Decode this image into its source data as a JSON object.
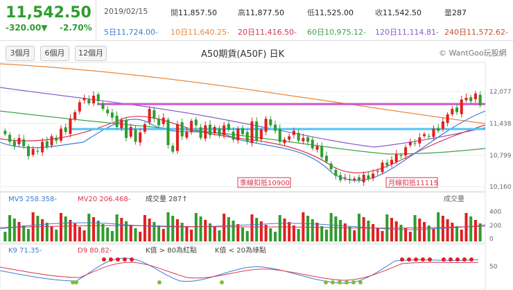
{
  "quote": {
    "price": "11,542.50",
    "change": "-320.00▼",
    "change_pct": "-2.70%",
    "date": "2019/02/15",
    "open_label": "開",
    "open": "11,857.50",
    "high_label": "高",
    "high": "11,877.50",
    "low_label": "低",
    "low": "11,525.00",
    "close_label": "收",
    "close": "11,542.50",
    "volume_label": "量",
    "volume": "287"
  },
  "moving_averages": [
    {
      "label": "5日",
      "value": "11,724.00-",
      "color": "#3a7bd5"
    },
    {
      "label": "10日",
      "value": "11,640.25-",
      "color": "#e8883a"
    },
    {
      "label": "20日",
      "value": "11,416.50-",
      "color": "#d9344c"
    },
    {
      "label": "60日",
      "value": "10,975.12-",
      "color": "#3aa34a"
    },
    {
      "label": "120日",
      "value": "11,114.81-",
      "color": "#8a5cc9"
    },
    {
      "label": "240日",
      "value": "11,572.62-",
      "color": "#c8502a"
    }
  ],
  "toolbar": {
    "btn_3m": "3個月",
    "btn_6m": "6個月",
    "btn_12m": "12個月",
    "title": "A50期貨(A50F) 日K",
    "brand": "© WantGoo玩股網"
  },
  "colors": {
    "up": "#e02020",
    "down": "#2e9d2e",
    "resistance": "#cc55cc",
    "support": "#4fc3f7",
    "ma5": "#3a7bd5",
    "ma20": "#d9344c",
    "ma60": "#3aa34a",
    "ma120": "#8a5cc9",
    "ma240": "#e8883a"
  },
  "chart_data": {
    "type": "candlestick",
    "y_ticks": [
      "12,077",
      "11,438",
      "10,799",
      "10,160"
    ],
    "ylim": [
      10000,
      12300
    ],
    "resistance_level": 11750,
    "support_level": 11340,
    "annotations": [
      {
        "text": "季線扣抵10900"
      },
      {
        "text": "月線扣抵11115"
      }
    ],
    "candles_close": [
      11020,
      10880,
      10800,
      10950,
      10800,
      10620,
      10750,
      10700,
      10880,
      10780,
      10980,
      10900,
      11120,
      11060,
      11300,
      11420,
      11600,
      11680,
      11580,
      11720,
      11620,
      11480,
      11400,
      11320,
      11150,
      11280,
      10950,
      11150,
      10880,
      11050,
      11200,
      11480,
      11300,
      11180,
      11320,
      10820,
      10700,
      11200,
      10980,
      11060,
      11260,
      11180,
      10950,
      11180,
      11000,
      11150,
      11000,
      11180,
      11100,
      10920,
      11120,
      11020,
      10880,
      11250,
      10900,
      11100,
      11300,
      11180,
      11080,
      10880,
      10920,
      10980,
      11080,
      10900,
      10950,
      10880,
      10760,
      10800,
      10600,
      10520,
      10380,
      10260,
      10180,
      10230,
      10180,
      10210,
      10180,
      10280,
      10200,
      10300,
      10350,
      10500,
      10450,
      10550,
      10650,
      10620,
      10780,
      10880,
      10850,
      10960,
      11020,
      10980,
      11120,
      11080,
      11250,
      11380,
      11480,
      11420,
      11650,
      11680,
      11620,
      11760,
      11542.5
    ],
    "volume": {
      "label": "成交量",
      "mv5_label": "MV5",
      "mv5": "258.358-",
      "mv20_label": "MV20",
      "mv20": "206.468-",
      "current": "成交量 287↑",
      "ticks": [
        "400",
        "200",
        "0"
      ]
    },
    "kd": {
      "k_label": "K9",
      "k_value": "71.35-",
      "d_label": "D9",
      "d_value": "80.82-",
      "note_overbought": "K值 > 80為紅點",
      "note_oversold": "K值 < 20為綠點",
      "ticks": [
        "50"
      ]
    }
  }
}
